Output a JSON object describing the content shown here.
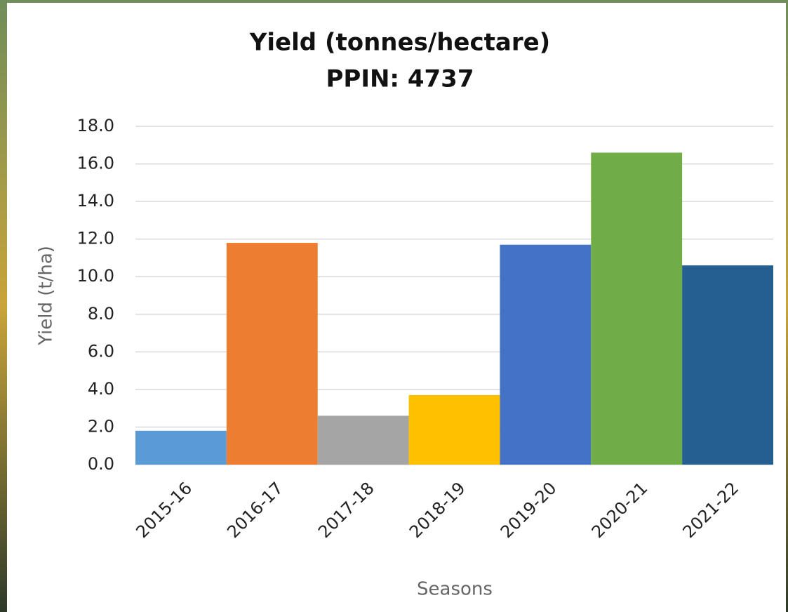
{
  "chart_data": {
    "type": "bar",
    "title": "Yield (tonnes/hectare)",
    "subtitle": "PPIN: 4737",
    "x_label": "Seasons",
    "y_label": "Yield (t/ha)",
    "categories": [
      "2015-16",
      "2016-17",
      "2017-18",
      "2018-19",
      "2019-20",
      "2020-21",
      "2021-22"
    ],
    "values": [
      1.8,
      11.8,
      2.6,
      3.7,
      11.7,
      16.6,
      10.6
    ],
    "colors": [
      "#5b9bd5",
      "#ed7d31",
      "#a5a5a5",
      "#ffc000",
      "#4472c4",
      "#70ad47",
      "#255e91"
    ],
    "ylim": [
      0,
      18
    ],
    "yticks": [
      {
        "value": 0,
        "label": "0.0"
      },
      {
        "value": 2,
        "label": "2.0"
      },
      {
        "value": 4,
        "label": "4.0"
      },
      {
        "value": 6,
        "label": "6.0"
      },
      {
        "value": 8,
        "label": "8.0"
      },
      {
        "value": 10,
        "label": "10.0"
      },
      {
        "value": 12,
        "label": "12.0"
      },
      {
        "value": 14,
        "label": "14.0"
      },
      {
        "value": 16,
        "label": "16.0"
      },
      {
        "value": 18,
        "label": "18.0"
      }
    ],
    "grid": true
  }
}
